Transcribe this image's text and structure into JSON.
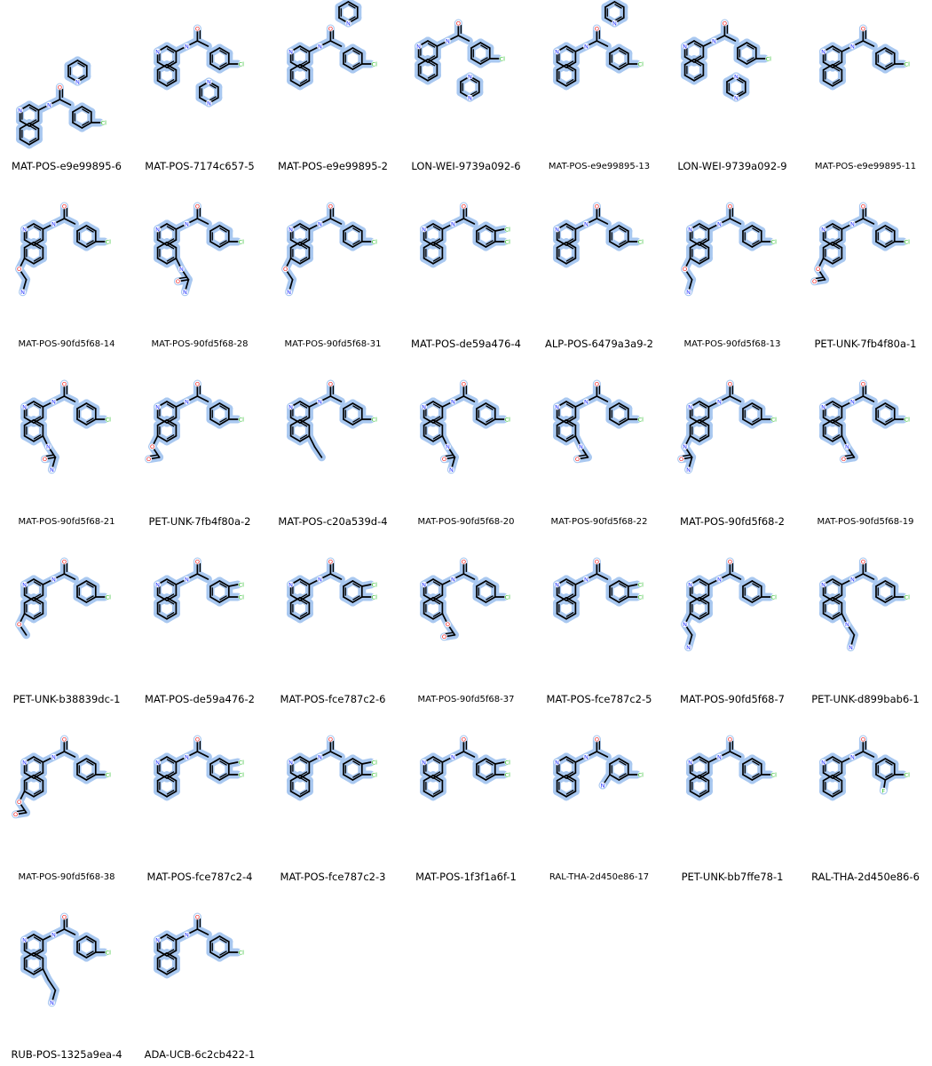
{
  "grid": {
    "columns": 7,
    "highlight_color": "#a9c8f0",
    "bond_color": "#000000",
    "atom_colors": {
      "N": "#2233ff",
      "O": "#ee1111",
      "Cl": "#22bb22",
      "F": "#22bb22",
      "S": "#c8a000"
    },
    "molecules": [
      {
        "id": "MAT-POS-e9e99895-6",
        "size": "lg",
        "type": "complex"
      },
      {
        "id": "MAT-POS-7174c657-5",
        "size": "lg",
        "type": "oxolane"
      },
      {
        "id": "MAT-POS-e9e99895-2",
        "size": "lg",
        "type": "morpholine"
      },
      {
        "id": "LON-WEI-9739a092-6",
        "size": "lg",
        "type": "piperazine_furoyl"
      },
      {
        "id": "MAT-POS-e9e99895-13",
        "size": "sm",
        "type": "pyrrolidine"
      },
      {
        "id": "LON-WEI-9739a092-9",
        "size": "lg",
        "type": "piperazine_sulfonyl"
      },
      {
        "id": "MAT-POS-e9e99895-11",
        "size": "sm",
        "type": "ester"
      },
      {
        "id": "MAT-POS-90fd5f68-14",
        "size": "sm",
        "type": "base",
        "sub": "O-ethyl-pyrrolidine",
        "subPos": "C6"
      },
      {
        "id": "MAT-POS-90fd5f68-28",
        "size": "sm",
        "type": "base",
        "sub": "N-methylsulfonamide",
        "subPos": "C7"
      },
      {
        "id": "MAT-POS-90fd5f68-31",
        "size": "sm",
        "type": "base",
        "sub": "O-ethyl-dimethylamine",
        "subPos": "C6"
      },
      {
        "id": "MAT-POS-de59a476-4",
        "size": "lg",
        "type": "alkoxy_dichloro"
      },
      {
        "id": "ALP-POS-6479a3a9-2",
        "size": "lg",
        "type": "sulfonamide_methyl"
      },
      {
        "id": "MAT-POS-90fd5f68-13",
        "size": "sm",
        "type": "base",
        "sub": "O-ethyl-dimethylamine-long",
        "subPos": "C6"
      },
      {
        "id": "PET-UNK-7fb4f80a-1",
        "size": "lg",
        "type": "base",
        "sub": "mesylate",
        "subPos": "C6"
      },
      {
        "id": "MAT-POS-90fd5f68-21",
        "size": "sm",
        "type": "base",
        "sub": "dimethylamide",
        "subPos": "C7"
      },
      {
        "id": "PET-UNK-7fb4f80a-2",
        "size": "lg",
        "type": "base",
        "sub": "mesylate",
        "subPos": "C6"
      },
      {
        "id": "MAT-POS-c20a539d-4",
        "size": "lg",
        "type": "base",
        "sub": "tert-alcohol",
        "subPos": "C7"
      },
      {
        "id": "MAT-POS-90fd5f68-20",
        "size": "sm",
        "type": "base",
        "sub": "methylamide",
        "subPos": "C7"
      },
      {
        "id": "MAT-POS-90fd5f68-22",
        "size": "sm",
        "type": "base",
        "sub": "acetamide",
        "subPos": "C7"
      },
      {
        "id": "MAT-POS-90fd5f68-2",
        "size": "lg",
        "type": "base",
        "sub": "methylamide-left",
        "subPos": "C6"
      },
      {
        "id": "MAT-POS-90fd5f68-19",
        "size": "sm",
        "type": "base",
        "sub": "primary-amide",
        "subPos": "C7"
      },
      {
        "id": "PET-UNK-b38839dc-1",
        "size": "lg",
        "type": "base",
        "sub": "fluoro-methoxy",
        "subPos": "C6"
      },
      {
        "id": "MAT-POS-de59a476-2",
        "size": "lg",
        "type": "methoxy_dichloro"
      },
      {
        "id": "MAT-POS-fce787c2-6",
        "size": "lg",
        "type": "difluoro_dichloro"
      },
      {
        "id": "MAT-POS-90fd5f68-37",
        "size": "sm",
        "type": "base",
        "sub": "carboxylate",
        "subPos": "C7"
      },
      {
        "id": "MAT-POS-fce787c2-5",
        "size": "lg",
        "type": "amine_dichloro"
      },
      {
        "id": "MAT-POS-90fd5f68-7",
        "size": "lg",
        "type": "base",
        "sub": "dimethylamino-left",
        "subPos": "C6"
      },
      {
        "id": "PET-UNK-d899bab6-1",
        "size": "lg",
        "type": "base",
        "sub": "dimethylamino",
        "subPos": "C7"
      },
      {
        "id": "MAT-POS-90fd5f68-38",
        "size": "sm",
        "type": "base",
        "sub": "carboxylate-left",
        "subPos": "C6"
      },
      {
        "id": "MAT-POS-fce787c2-4",
        "size": "lg",
        "type": "oxo_dichloro"
      },
      {
        "id": "MAT-POS-fce787c2-3",
        "size": "lg",
        "type": "methyl_dichloro"
      },
      {
        "id": "MAT-POS-1f3f1a6f-1",
        "size": "lg",
        "type": "imine_dichloro"
      },
      {
        "id": "RAL-THA-2d450e86-17",
        "size": "sm",
        "type": "nitrile"
      },
      {
        "id": "PET-UNK-bb7ffe78-1",
        "size": "lg",
        "type": "ethyl"
      },
      {
        "id": "RAL-THA-2d450e86-6",
        "size": "lg",
        "type": "fluoro"
      },
      {
        "id": "RUB-POS-1325a9ea-4",
        "size": "lg",
        "type": "base",
        "sub": "methyl",
        "subPos": "C7"
      },
      {
        "id": "ADA-UCB-6c2cb422-1",
        "size": "lg",
        "type": "base",
        "sub": "none",
        "subPos": "none"
      }
    ]
  }
}
